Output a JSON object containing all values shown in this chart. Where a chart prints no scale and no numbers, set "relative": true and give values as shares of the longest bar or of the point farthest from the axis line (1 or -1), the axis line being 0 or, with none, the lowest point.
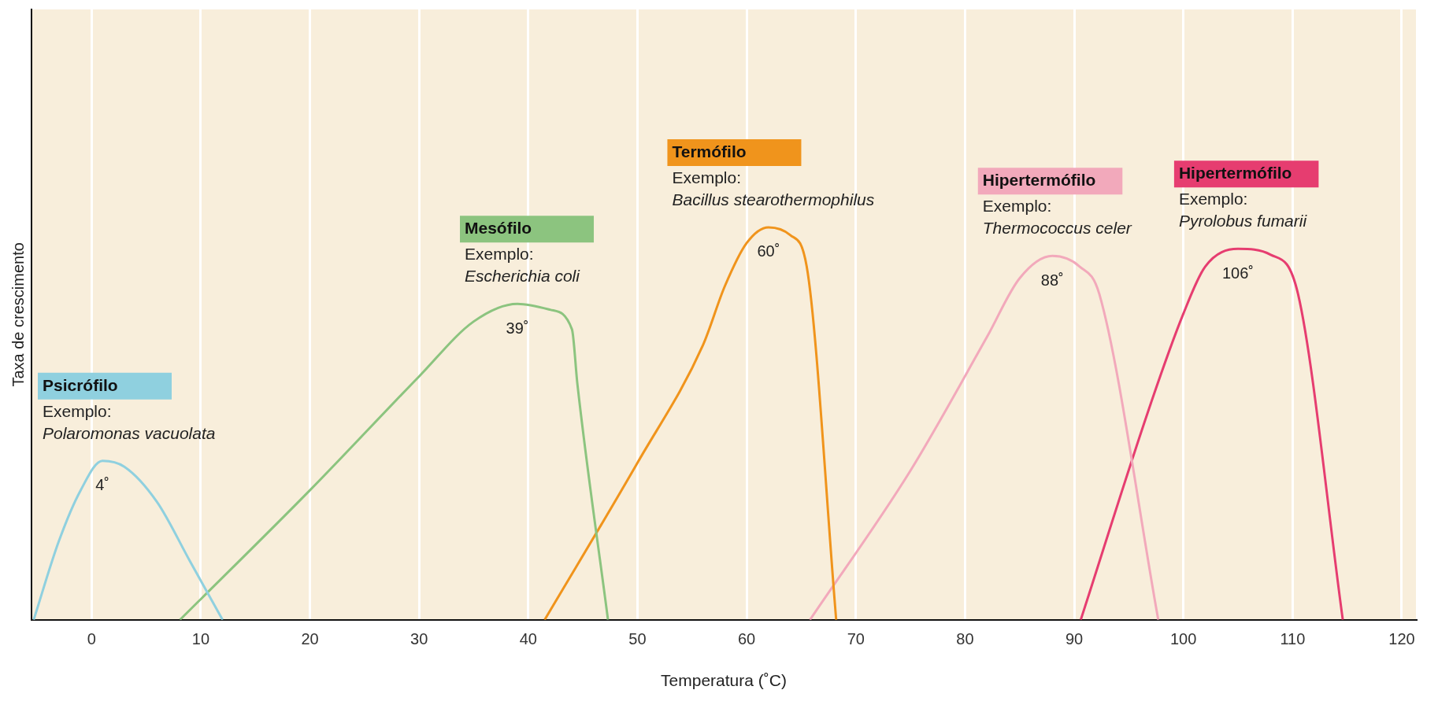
{
  "chart_data": {
    "type": "line",
    "relative": true,
    "xlabel": "Temperatura (˚C)",
    "ylabel": "Taxa de crescimento",
    "xlim": [
      -5.5,
      121.3
    ],
    "xticks": [
      0,
      10,
      20,
      30,
      40,
      50,
      60,
      70,
      80,
      90,
      100,
      110,
      120
    ],
    "grid": "x",
    "legend": false,
    "marker": "none",
    "series": [
      {
        "name": "Psicrófilo",
        "color": "#8fd0df",
        "x": [
          -5.3,
          -3,
          -1,
          1,
          3,
          6,
          9,
          12
        ],
        "values": [
          0,
          0.2,
          0.33,
          0.405,
          0.39,
          0.3,
          0.15,
          0
        ]
      },
      {
        "name": "Mesófilo",
        "color": "#8cc47f",
        "x": [
          8.1,
          20,
          30,
          35,
          39,
          42,
          44,
          44.5,
          47.3
        ],
        "values": [
          0,
          0.33,
          0.62,
          0.76,
          0.805,
          0.79,
          0.74,
          0.6,
          0
        ]
      },
      {
        "name": "Termófilo",
        "color": "#f0941c",
        "x": [
          41.5,
          50,
          56,
          58,
          60,
          62,
          64,
          65.5,
          68.2
        ],
        "values": [
          0,
          0.4,
          0.7,
          0.85,
          0.96,
          1,
          0.98,
          0.9,
          0
        ]
      },
      {
        "name": "Hipertermófilo",
        "color": "#f2a9bb",
        "x": [
          65.8,
          75,
          82,
          85,
          88,
          90.5,
          92.3,
          97.7
        ],
        "values": [
          0,
          0.38,
          0.72,
          0.87,
          0.927,
          0.9,
          0.83,
          0
        ]
      },
      {
        "name": "Hipertermófilo",
        "color": "#e63d70",
        "x": [
          90.6,
          97,
          100,
          102,
          105,
          108,
          110.5,
          114.6
        ],
        "values": [
          0,
          0.55,
          0.78,
          0.9,
          0.945,
          0.93,
          0.83,
          0
        ]
      }
    ],
    "annotations": [
      "Exemplo:\nPolaromonas vacuolata",
      "Exemplo:\nEscherichia coli",
      "Exemplo:\nBacillus stearothermophilus",
      "Exemplo:\nThermococcus celer",
      "Exemplo:\nPyrolobus fumarii",
      {
        "text": "4˚",
        "x": 1,
        "y": 0.405
      },
      {
        "text": "39˚",
        "x": 39,
        "y": 0.805
      },
      {
        "text": "60˚",
        "x": 62,
        "y": 1
      },
      {
        "text": "88˚",
        "x": 88,
        "y": 0.927
      },
      {
        "text": "106˚",
        "x": 105,
        "y": 0.945
      }
    ]
  }
}
